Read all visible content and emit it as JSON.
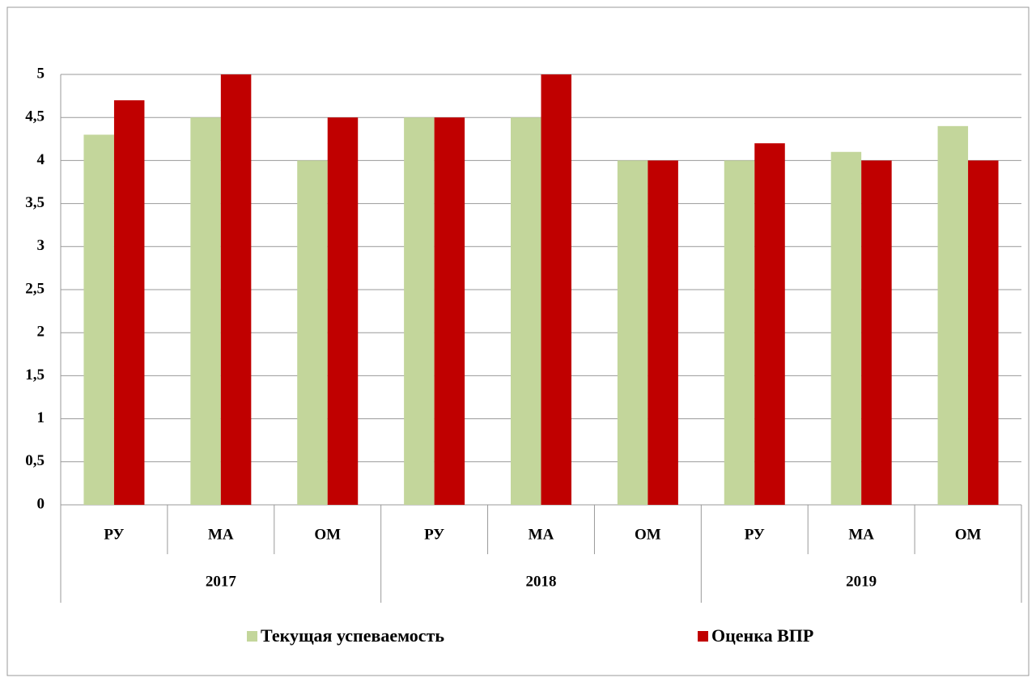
{
  "chart_data": {
    "type": "bar",
    "categories": [
      "РУ",
      "МА",
      "ОМ",
      "РУ",
      "МА",
      "ОМ",
      "РУ",
      "МА",
      "ОМ"
    ],
    "groups": [
      "2017",
      "2018",
      "2019"
    ],
    "series": [
      {
        "name": "Текущая успеваемость",
        "color": "#c3d69b",
        "values": [
          4.3,
          4.5,
          4.0,
          4.5,
          4.5,
          4.0,
          4.0,
          4.1,
          4.4
        ]
      },
      {
        "name": "Оценка ВПР",
        "color": "#c00000",
        "values": [
          4.7,
          5,
          4.5,
          4.5,
          5,
          4.0,
          4.2,
          4.0,
          4.0
        ]
      }
    ],
    "ylim": [
      0,
      5
    ],
    "yticks": [
      0,
      {
        "value": 0.5,
        "label": "0,5"
      },
      1,
      {
        "value": 1.5,
        "label": "1,5"
      },
      2,
      {
        "value": 2.5,
        "label": "2,5"
      },
      3,
      {
        "value": 3.5,
        "label": "3,5"
      },
      4,
      {
        "value": 4.5,
        "label": "4,5"
      },
      5
    ],
    "grid": true,
    "legend": "bottom"
  }
}
